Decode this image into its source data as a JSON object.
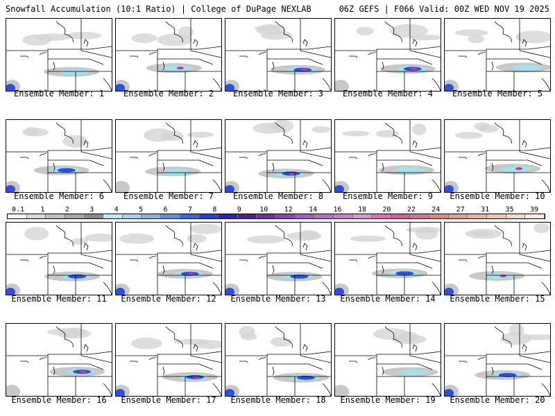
{
  "header": {
    "left": "Snowfall Accumulation (10:1 Ratio) | College of DuPage NEXLAB",
    "right": "06Z GEFS | F066 Valid: 00Z WED NOV 19 2025"
  },
  "members": [
    "Ensemble Member: 1",
    "Ensemble Member: 2",
    "Ensemble Member: 3",
    "Ensemble Member: 4",
    "Ensemble Member: 5",
    "Ensemble Member: 6",
    "Ensemble Member: 7",
    "Ensemble Member: 8",
    "Ensemble Member: 9",
    "Ensemble Member: 10",
    "Ensemble Member: 11",
    "Ensemble Member: 12",
    "Ensemble Member: 13",
    "Ensemble Member: 14",
    "Ensemble Member: 15",
    "Ensemble Member: 16",
    "Ensemble Member: 17",
    "Ensemble Member: 18",
    "Ensemble Member: 19",
    "Ensemble Member: 20"
  ],
  "colorbar": {
    "labels": [
      "0.1",
      "1",
      "2",
      "3",
      "4",
      "5",
      "6",
      "7",
      "8",
      "9",
      "10",
      "12",
      "14",
      "16",
      "18",
      "20",
      "22",
      "24",
      "27",
      "31",
      "35",
      "39"
    ],
    "colors": [
      "#f2f2f2",
      "#d9d9d9",
      "#bfbfbf",
      "#a6a6a6",
      "#8c8c8c",
      "#b3ecf2",
      "#99d6f5",
      "#7fb3f0",
      "#5a8ff0",
      "#3366ee",
      "#1f3fe0",
      "#2626b8",
      "#4a1fa0",
      "#6a2fb0",
      "#8a44c2",
      "#a25bd0",
      "#b86ccd",
      "#cc7fd2",
      "#d894d6",
      "#de70b0",
      "#e05c98",
      "#e2708a",
      "#e5857f",
      "#e89c80",
      "#ecb196",
      "#f0c6ae",
      "#f5dcc8",
      "#fbeee6"
    ]
  }
}
